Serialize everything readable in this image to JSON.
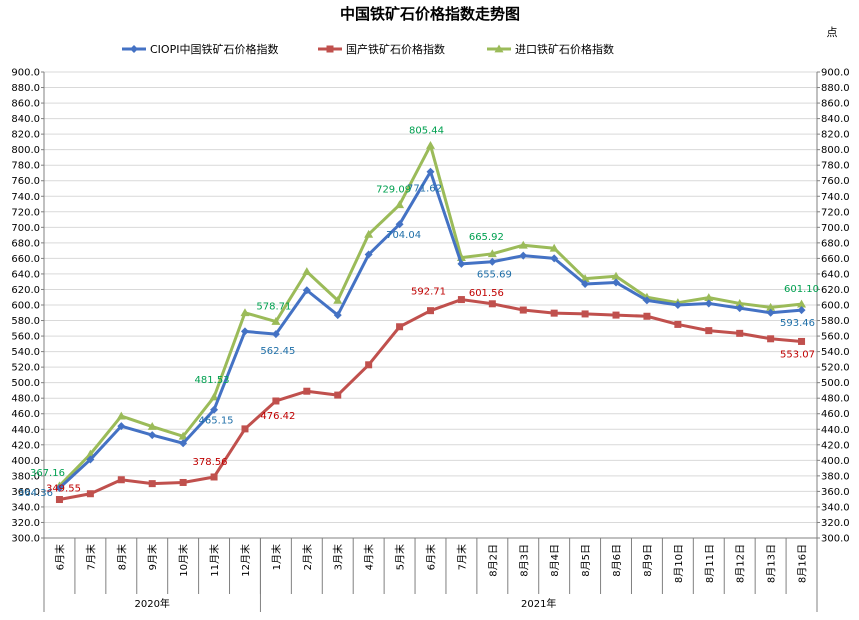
{
  "chart_data": {
    "type": "line",
    "title": "中国铁矿石价格指数走势图",
    "unit": "点",
    "categories": [
      "6月末",
      "7月末",
      "8月末",
      "9月末",
      "10月末",
      "11月末",
      "12月末",
      "1月末",
      "2月末",
      "3月末",
      "4月末",
      "5月末",
      "6月末",
      "7月末",
      "8月2日",
      "8月3日",
      "8月4日",
      "8月5日",
      "8月6日",
      "8月9日",
      "8月10日",
      "8月11日",
      "8月12日",
      "8月13日",
      "8月16日"
    ],
    "year_groups": [
      {
        "label": "2020年",
        "start": 0,
        "end": 6
      },
      {
        "label": "2021年",
        "start": 7,
        "end": 24
      }
    ],
    "ylim": [
      300,
      900
    ],
    "ystep": 20,
    "grid": true,
    "legend_position": "top",
    "series": [
      {
        "name": "CIOPI中国铁矿石价格指数",
        "color": "#4472c4",
        "marker": "diamond",
        "values": [
          364.36,
          401.0,
          444.0,
          432.5,
          422.0,
          465.15,
          566.0,
          562.45,
          619.0,
          587.0,
          665.0,
          704.04,
          771.62,
          653.0,
          655.69,
          663.5,
          660.0,
          627.0,
          629.0,
          606.0,
          600.0,
          602.0,
          596.0,
          590.0,
          593.46
        ]
      },
      {
        "name": "国产铁矿石价格指数",
        "color": "#c0504d",
        "marker": "square",
        "values": [
          349.55,
          357.0,
          375.0,
          370.0,
          371.5,
          378.56,
          440.5,
          476.42,
          489.0,
          484.0,
          523.0,
          572.0,
          592.71,
          607.0,
          601.56,
          593.5,
          589.5,
          588.5,
          587.0,
          585.5,
          575.0,
          567.0,
          563.5,
          556.5,
          553.07
        ]
      },
      {
        "name": "进口铁矿石价格指数",
        "color": "#9bbb59",
        "marker": "triangle",
        "values": [
          367.16,
          408.0,
          457.0,
          443.5,
          431.0,
          481.53,
          590.0,
          578.71,
          643.0,
          606.0,
          691.0,
          729.09,
          805.44,
          661.0,
          665.92,
          677.0,
          673.0,
          634.0,
          637.0,
          610.0,
          603.0,
          609.5,
          602.0,
          597.0,
          601.1
        ]
      }
    ],
    "data_labels": [
      {
        "series": 0,
        "index": 0,
        "text": "364.36"
      },
      {
        "series": 0,
        "index": 5,
        "text": "465.15"
      },
      {
        "series": 0,
        "index": 7,
        "text": "562.45"
      },
      {
        "series": 0,
        "index": 11,
        "text": "704.04"
      },
      {
        "series": 0,
        "index": 12,
        "text": "771.62"
      },
      {
        "series": 0,
        "index": 14,
        "text": "655.69"
      },
      {
        "series": 0,
        "index": 24,
        "text": "593.46"
      },
      {
        "series": 1,
        "index": 0,
        "text": "349.55"
      },
      {
        "series": 1,
        "index": 5,
        "text": "378.56"
      },
      {
        "series": 1,
        "index": 7,
        "text": "476.42"
      },
      {
        "series": 1,
        "index": 12,
        "text": "592.71"
      },
      {
        "series": 1,
        "index": 14,
        "text": "601.56"
      },
      {
        "series": 1,
        "index": 24,
        "text": "553.07"
      },
      {
        "series": 2,
        "index": 0,
        "text": "367.16"
      },
      {
        "series": 2,
        "index": 5,
        "text": "481.53"
      },
      {
        "series": 2,
        "index": 7,
        "text": "578.71"
      },
      {
        "series": 2,
        "index": 11,
        "text": "729.09"
      },
      {
        "series": 2,
        "index": 12,
        "text": "805.44"
      },
      {
        "series": 2,
        "index": 14,
        "text": "665.92"
      },
      {
        "series": 2,
        "index": 24,
        "text": "601.10"
      }
    ]
  }
}
